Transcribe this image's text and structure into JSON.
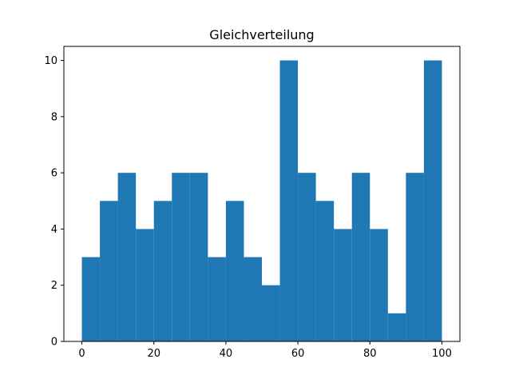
{
  "chart_data": {
    "type": "bar",
    "title": "Gleichverteilung",
    "xlabel": "",
    "ylabel": "",
    "bins": [
      {
        "start": 0,
        "end": 5,
        "count": 3
      },
      {
        "start": 5,
        "end": 10,
        "count": 5
      },
      {
        "start": 10,
        "end": 15,
        "count": 6
      },
      {
        "start": 15,
        "end": 20,
        "count": 4
      },
      {
        "start": 20,
        "end": 25,
        "count": 5
      },
      {
        "start": 25,
        "end": 30,
        "count": 6
      },
      {
        "start": 30,
        "end": 35,
        "count": 6
      },
      {
        "start": 35,
        "end": 40,
        "count": 3
      },
      {
        "start": 40,
        "end": 45,
        "count": 5
      },
      {
        "start": 45,
        "end": 50,
        "count": 3
      },
      {
        "start": 50,
        "end": 55,
        "count": 2
      },
      {
        "start": 55,
        "end": 60,
        "count": 10
      },
      {
        "start": 60,
        "end": 65,
        "count": 6
      },
      {
        "start": 65,
        "end": 70,
        "count": 5
      },
      {
        "start": 70,
        "end": 75,
        "count": 4
      },
      {
        "start": 75,
        "end": 80,
        "count": 6
      },
      {
        "start": 80,
        "end": 85,
        "count": 4
      },
      {
        "start": 85,
        "end": 90,
        "count": 1
      },
      {
        "start": 90,
        "end": 95,
        "count": 6
      },
      {
        "start": 95,
        "end": 100,
        "count": 10
      }
    ],
    "xlim": [
      -5,
      105
    ],
    "ylim": [
      0,
      10.5
    ],
    "xticks": [
      0,
      20,
      40,
      60,
      80,
      100
    ],
    "yticks": [
      0,
      2,
      4,
      6,
      8,
      10
    ],
    "bar_color": "#1f77b4",
    "grid": false,
    "legend": "none"
  }
}
